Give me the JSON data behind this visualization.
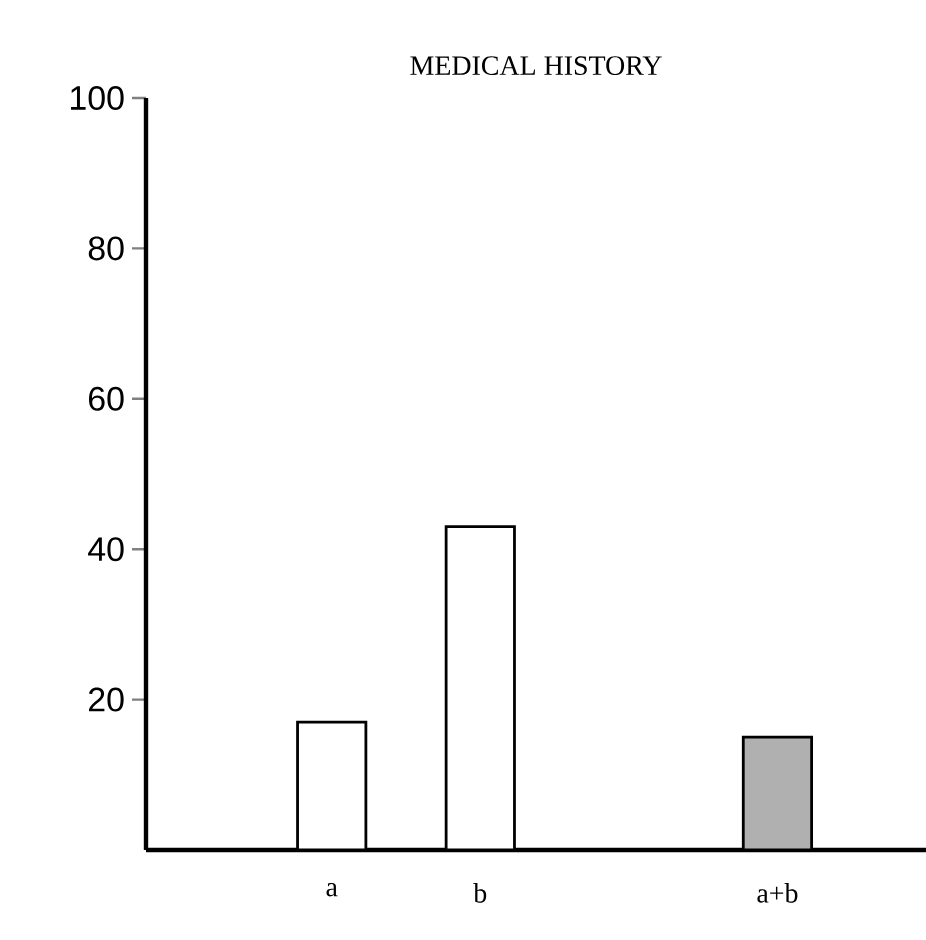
{
  "chart_data": {
    "type": "bar",
    "title": "MEDICAL HISTORY",
    "categories": [
      "a",
      "b",
      null,
      "a+b"
    ],
    "values": [
      17,
      43,
      null,
      15
    ],
    "colors": [
      "#ffffff",
      "#ffffff",
      "#ffffff",
      "#b0b0b0"
    ],
    "ylim": [
      0,
      100
    ],
    "yticks": [
      20,
      40,
      60,
      80,
      100
    ],
    "grid": false
  }
}
